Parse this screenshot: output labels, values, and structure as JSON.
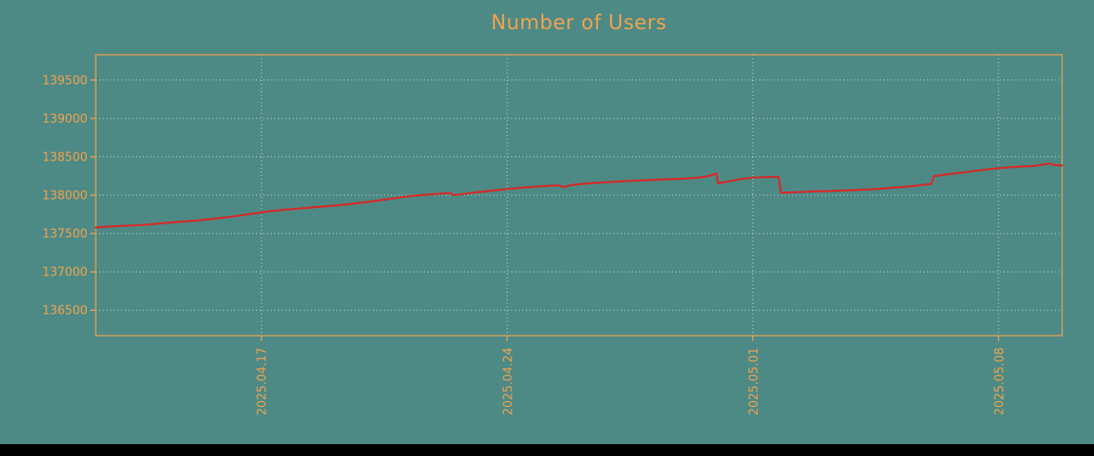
{
  "colors": {
    "background": "#4e8a85",
    "accent": "#f0a24e",
    "line": "#d52b2b",
    "grid": "#e0ebe8",
    "bottom_bar": "#000000"
  },
  "chart_data": {
    "type": "line",
    "title": "Number of Users",
    "xlabel": "",
    "ylabel": "",
    "grid": "dotted",
    "legend": "none",
    "y_ticks": [
      136500,
      137000,
      137500,
      138000,
      138500,
      139000,
      139500
    ],
    "y_range": [
      136170,
      139830
    ],
    "x_ticks": [
      {
        "label": "2025.04.17",
        "day": 4.72
      },
      {
        "label": "2025.04.24",
        "day": 11.72
      },
      {
        "label": "2025.05.01",
        "day": 18.72
      },
      {
        "label": "2025.05.08",
        "day": 25.72
      }
    ],
    "x_domain_days": [
      0,
      27.53
    ],
    "series": [
      {
        "name": "Number of Users",
        "color": "#d52b2b",
        "points": [
          [
            0,
            137578
          ],
          [
            0.35,
            137590
          ],
          [
            0.75,
            137600
          ],
          [
            1.1,
            137607
          ],
          [
            1.45,
            137616
          ],
          [
            1.8,
            137630
          ],
          [
            2.15,
            137645
          ],
          [
            2.5,
            137657
          ],
          [
            2.85,
            137668
          ],
          [
            3.2,
            137684
          ],
          [
            3.55,
            137703
          ],
          [
            3.9,
            137722
          ],
          [
            4.3,
            137748
          ],
          [
            4.72,
            137776
          ],
          [
            5.05,
            137796
          ],
          [
            5.4,
            137810
          ],
          [
            5.75,
            137824
          ],
          [
            6.1,
            137838
          ],
          [
            6.45,
            137851
          ],
          [
            6.8,
            137864
          ],
          [
            7.15,
            137880
          ],
          [
            7.5,
            137898
          ],
          [
            7.85,
            137918
          ],
          [
            8.2,
            137940
          ],
          [
            8.55,
            137963
          ],
          [
            8.9,
            137984
          ],
          [
            9.25,
            138000
          ],
          [
            9.6,
            138012
          ],
          [
            9.95,
            138024
          ],
          [
            10.1,
            138028
          ],
          [
            10.18,
            138000
          ],
          [
            10.55,
            138020
          ],
          [
            10.9,
            138040
          ],
          [
            11.3,
            138060
          ],
          [
            11.72,
            138080
          ],
          [
            12.1,
            138096
          ],
          [
            12.5,
            138110
          ],
          [
            12.85,
            138120
          ],
          [
            13.2,
            138128
          ],
          [
            13.32,
            138105
          ],
          [
            13.55,
            138132
          ],
          [
            13.9,
            138148
          ],
          [
            14.25,
            138160
          ],
          [
            14.6,
            138170
          ],
          [
            14.95,
            138180
          ],
          [
            15.3,
            138188
          ],
          [
            15.65,
            138195
          ],
          [
            16.0,
            138202
          ],
          [
            16.35,
            138208
          ],
          [
            16.7,
            138214
          ],
          [
            17.05,
            138224
          ],
          [
            17.35,
            138238
          ],
          [
            17.55,
            138262
          ],
          [
            17.68,
            138285
          ],
          [
            17.73,
            138152
          ],
          [
            18.05,
            138182
          ],
          [
            18.4,
            138212
          ],
          [
            18.72,
            138228
          ],
          [
            19.05,
            138234
          ],
          [
            19.45,
            138240
          ],
          [
            19.52,
            138030
          ],
          [
            19.9,
            138038
          ],
          [
            20.3,
            138046
          ],
          [
            20.7,
            138052
          ],
          [
            21.1,
            138058
          ],
          [
            21.5,
            138064
          ],
          [
            21.9,
            138072
          ],
          [
            22.3,
            138082
          ],
          [
            22.7,
            138096
          ],
          [
            23.1,
            138112
          ],
          [
            23.45,
            138128
          ],
          [
            23.8,
            138146
          ],
          [
            23.88,
            138250
          ],
          [
            24.2,
            138268
          ],
          [
            24.55,
            138288
          ],
          [
            24.9,
            138306
          ],
          [
            25.3,
            138330
          ],
          [
            25.72,
            138352
          ],
          [
            26.05,
            138364
          ],
          [
            26.4,
            138374
          ],
          [
            26.75,
            138382
          ],
          [
            27.05,
            138404
          ],
          [
            27.2,
            138414
          ],
          [
            27.32,
            138392
          ],
          [
            27.53,
            138386
          ]
        ]
      }
    ]
  }
}
